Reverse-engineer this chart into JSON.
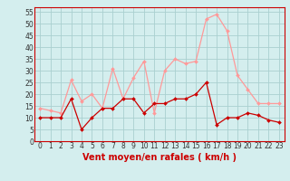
{
  "hours": [
    0,
    1,
    2,
    3,
    4,
    5,
    6,
    7,
    8,
    9,
    10,
    11,
    12,
    13,
    14,
    15,
    16,
    17,
    18,
    19,
    20,
    21,
    22,
    23
  ],
  "wind_avg": [
    10,
    10,
    10,
    18,
    5,
    10,
    14,
    14,
    18,
    18,
    12,
    16,
    16,
    18,
    18,
    20,
    25,
    7,
    10,
    10,
    12,
    11,
    9,
    8
  ],
  "wind_gust": [
    14,
    13,
    12,
    26,
    17,
    20,
    14,
    31,
    18,
    27,
    34,
    12,
    30,
    35,
    33,
    34,
    52,
    54,
    47,
    28,
    22,
    16,
    16,
    16
  ],
  "bg_color": "#d4eeee",
  "grid_color": "#aad0d0",
  "avg_color": "#cc0000",
  "gust_color": "#ff9999",
  "xlabel": "Vent moyen/en rafales ( km/h )",
  "ylabel_ticks": [
    0,
    5,
    10,
    15,
    20,
    25,
    30,
    35,
    40,
    45,
    50,
    55
  ],
  "ylim": [
    0,
    57
  ],
  "xlim": [
    -0.5,
    23.5
  ],
  "xlabel_color": "#cc0000",
  "tick_fontsize": 5.5,
  "xlabel_fontsize": 7
}
